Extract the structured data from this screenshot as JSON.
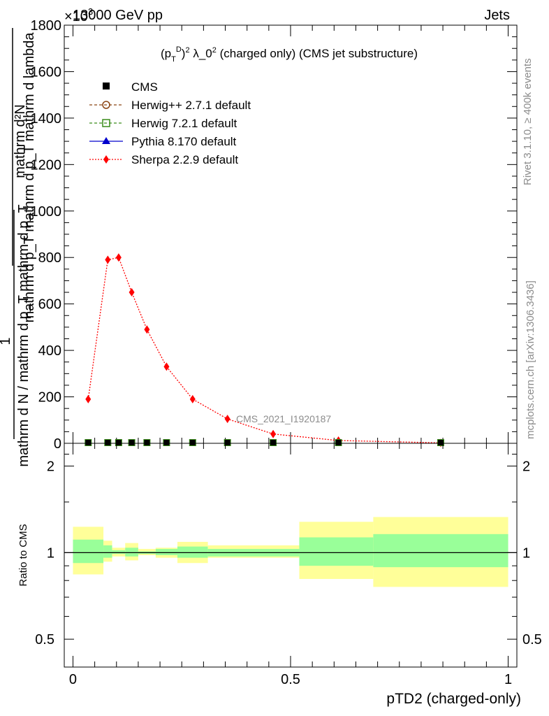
{
  "header": {
    "energy": "13000 GeV pp",
    "channel": "Jets",
    "multiplier": "×10",
    "multiplier_exp": "3"
  },
  "side": {
    "rivet": "Rivet 3.1.10, ≥ 400k events",
    "mcplots": "mcplots.cern.ch [arXiv:1306.3436]"
  },
  "watermark": "CMS_2021_I1920187",
  "main_panel": {
    "ylabel_top": "mathrm d²N",
    "ylabel_bottom": "mathrm d p_T mathrm d p_T mathrm d lambda",
    "ylabel_top2": "1",
    "ylabel_bottom2": "mathrm d N / mathrm d p_T mathrm d p_T",
    "ytick_labels": [
      "0",
      "200",
      "400",
      "600",
      "800",
      "1000",
      "1200",
      "1400",
      "1600",
      "1800"
    ]
  },
  "ratio_panel": {
    "ylabel": "Ratio to CMS",
    "ytick_labels": [
      "0.5",
      "1",
      "2"
    ]
  },
  "xaxis": {
    "label": "pTD2 (charged-only)",
    "tick_labels": [
      "0",
      "0.5",
      "1"
    ]
  },
  "legend": {
    "entries": [
      {
        "name": "CMS",
        "color": "#000000"
      },
      {
        "name": "Herwig++ 2.7.1 default",
        "color": "#8b4513"
      },
      {
        "name": "Herwig 7.2.1 default",
        "color": "#3a8c1a"
      },
      {
        "name": "Pythia 8.170 default",
        "color": "#0000cc"
      },
      {
        "name": "Sherpa 2.2.9 default",
        "color": "#ff0000"
      }
    ]
  },
  "chart_data": {
    "type": "line",
    "title": "(p_T^D)^2 λ_0^2 (charged only) (CMS jet substructure)",
    "xlabel": "pTD2 (charged-only)",
    "ylabel": "1/N dN/dp_T dp_T dλ (×10^3)",
    "xlim": [
      -0.02,
      1.02
    ],
    "ylim": [
      0,
      1800
    ],
    "bins": [
      {
        "xlo": 0.0,
        "xhi": 0.07,
        "x": 0.035,
        "sherpa": 190,
        "cms": 0,
        "ratio_inner": [
          0.92,
          1.11
        ],
        "ratio_outer": [
          0.84,
          1.23
        ]
      },
      {
        "xlo": 0.07,
        "xhi": 0.09,
        "x": 0.08,
        "sherpa": 790,
        "cms": 0,
        "ratio_inner": [
          0.96,
          1.06
        ],
        "ratio_outer": [
          0.93,
          1.1
        ]
      },
      {
        "xlo": 0.09,
        "xhi": 0.12,
        "x": 0.105,
        "sherpa": 800,
        "cms": 0,
        "ratio_inner": [
          0.99,
          1.02
        ],
        "ratio_outer": [
          0.97,
          1.04
        ]
      },
      {
        "xlo": 0.12,
        "xhi": 0.15,
        "x": 0.135,
        "sherpa": 650,
        "cms": 0,
        "ratio_inner": [
          0.97,
          1.04
        ],
        "ratio_outer": [
          0.94,
          1.08
        ]
      },
      {
        "xlo": 0.15,
        "xhi": 0.19,
        "x": 0.17,
        "sherpa": 490,
        "cms": 0,
        "ratio_inner": [
          0.99,
          1.01
        ],
        "ratio_outer": [
          0.98,
          1.03
        ]
      },
      {
        "xlo": 0.19,
        "xhi": 0.24,
        "x": 0.215,
        "sherpa": 330,
        "cms": 0,
        "ratio_inner": [
          0.98,
          1.03
        ],
        "ratio_outer": [
          0.96,
          1.04
        ]
      },
      {
        "xlo": 0.24,
        "xhi": 0.31,
        "x": 0.275,
        "sherpa": 190,
        "cms": 0,
        "ratio_inner": [
          0.96,
          1.05
        ],
        "ratio_outer": [
          0.92,
          1.09
        ]
      },
      {
        "xlo": 0.31,
        "xhi": 0.52,
        "x": 0.355,
        "sherpa": 105,
        "cms": 0,
        "ratio_inner": [
          0.97,
          1.03
        ],
        "ratio_outer": [
          0.96,
          1.06
        ]
      },
      {
        "xlo": 0.52,
        "xhi": 0.69,
        "x": 0.46,
        "sherpa": 40,
        "cms": 0,
        "ratio_inner": [
          0.9,
          1.13
        ],
        "ratio_outer": [
          0.81,
          1.28
        ]
      },
      {
        "xlo": 0.69,
        "xhi": 1.0,
        "x": 0.61,
        "sherpa": 12,
        "cms": 0,
        "ratio_inner": [
          0.89,
          1.16
        ],
        "ratio_outer": [
          0.76,
          1.33
        ]
      },
      {
        "xlo": 0.69,
        "xhi": 1.0,
        "x": 0.845,
        "sherpa": 2,
        "cms": 0,
        "ratio_inner": [
          0.89,
          1.16
        ],
        "ratio_outer": [
          0.76,
          1.33
        ]
      }
    ],
    "ratio_ylim": [
      0.4,
      2.4
    ],
    "ratio_ticks": [
      0.5,
      1,
      2
    ],
    "colors": {
      "band_inner": "#99ff99",
      "band_outer": "#ffff99",
      "sherpa": "#ff0000"
    }
  }
}
